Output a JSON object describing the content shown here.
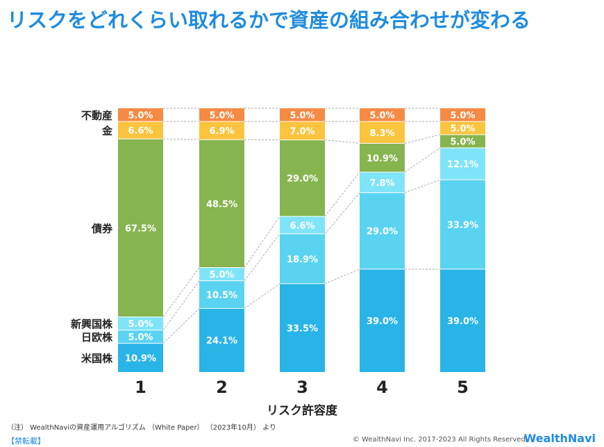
{
  "title": "リスクをどれくらい取れるかで資産の組み合わせが変わる",
  "chart_data": {
    "type": "bar",
    "stacked": true,
    "title": "リスクをどれくらい取れるかで資産の組み合わせが変わる",
    "xlabel": "リスク許容度",
    "ylabel": "",
    "categories": [
      "1",
      "2",
      "3",
      "4",
      "5"
    ],
    "series": [
      {
        "name": "米国株",
        "color": "#29B4E8",
        "values": [
          10.9,
          24.1,
          33.5,
          39.0,
          39.0
        ]
      },
      {
        "name": "日欧株",
        "color": "#5AD3F1",
        "values": [
          5.0,
          10.5,
          18.9,
          29.0,
          33.9
        ]
      },
      {
        "name": "新興国株",
        "color": "#80E4F8",
        "values": [
          5.0,
          5.0,
          6.6,
          7.8,
          12.1
        ]
      },
      {
        "name": "債券",
        "color": "#86B44F",
        "values": [
          67.5,
          48.5,
          29.0,
          10.9,
          5.0
        ]
      },
      {
        "name": "金",
        "color": "#FBC43E",
        "values": [
          6.6,
          6.9,
          7.0,
          8.3,
          5.0
        ]
      },
      {
        "name": "不動産",
        "color": "#F58A45",
        "values": [
          5.0,
          5.0,
          5.0,
          5.0,
          5.0
        ]
      }
    ],
    "ylim": [
      0,
      100
    ],
    "legend": "left-labels"
  },
  "footer": {
    "note": "（注） WealthNaviの資産運用アルゴリズム （White Paper） （2023年10月） より",
    "no_reprint": "【禁転載】",
    "copyright": "© WealthNavi Inc. 2017-2023 All Rights Reserved.",
    "brand": "WealthNavi"
  }
}
